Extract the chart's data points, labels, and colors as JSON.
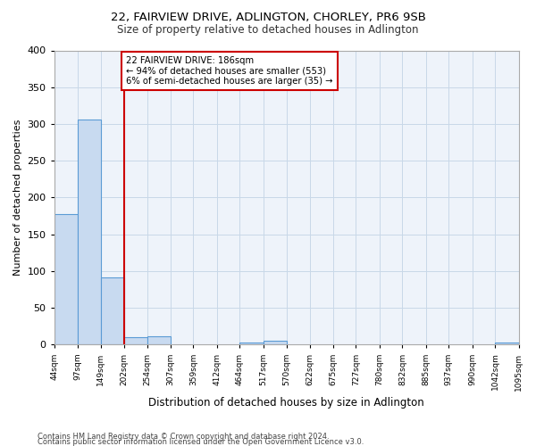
{
  "title": "22, FAIRVIEW DRIVE, ADLINGTON, CHORLEY, PR6 9SB",
  "subtitle": "Size of property relative to detached houses in Adlington",
  "xlabel": "Distribution of detached houses by size in Adlington",
  "ylabel": "Number of detached properties",
  "bin_edges": [
    44,
    97,
    149,
    202,
    254,
    307,
    359,
    412,
    464,
    517,
    570,
    622,
    675,
    727,
    780,
    832,
    885,
    937,
    990,
    1042,
    1095
  ],
  "bin_counts": [
    178,
    306,
    92,
    10,
    11,
    0,
    0,
    0,
    3,
    5,
    0,
    0,
    0,
    0,
    0,
    0,
    0,
    0,
    0,
    3
  ],
  "property_size": 186,
  "bar_color": "#c8daf0",
  "bar_edge_color": "#5b9bd5",
  "vline_color": "#cc0000",
  "vline_x": 202,
  "annotation_text": "22 FAIRVIEW DRIVE: 186sqm\n← 94% of detached houses are smaller (553)\n6% of semi-detached houses are larger (35) →",
  "annotation_box_edgecolor": "#cc0000",
  "footer_line1": "Contains HM Land Registry data © Crown copyright and database right 2024.",
  "footer_line2": "Contains public sector information licensed under the Open Government Licence v3.0.",
  "ylim": [
    0,
    400
  ],
  "yticks": [
    0,
    50,
    100,
    150,
    200,
    250,
    300,
    350,
    400
  ],
  "background_color": "#ffffff",
  "grid_color": "#c8d8e8",
  "plot_bg_color": "#eef3fa"
}
